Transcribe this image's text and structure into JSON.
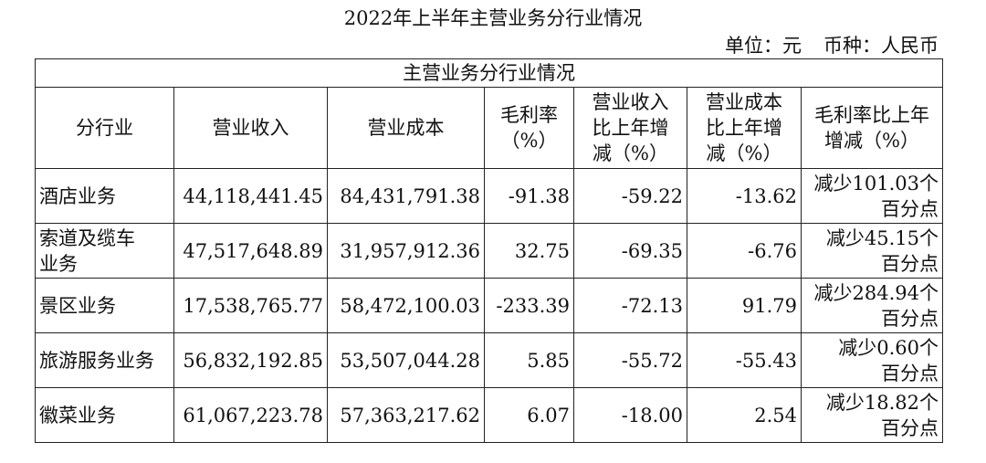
{
  "header": {
    "title": "2022年上半年主营业务分行业情况",
    "unit": "单位：元",
    "currency": "币种：人民币"
  },
  "table": {
    "caption": "主营业务分行业情况",
    "columns": [
      "分行业",
      "营业收入",
      "营业成本",
      "毛利率\n（%）",
      "营业收入\n比上年增\n减（%）",
      "营业成本\n比上年增\n减（%）",
      "毛利率比上年\n增减（%）"
    ],
    "rows": [
      [
        "酒店业务",
        "44,118,441.45",
        "84,431,791.38",
        "-91.38",
        "-59.22",
        "-13.62",
        "减少101.03个\n百分点"
      ],
      [
        "索道及缆车\n业务",
        "47,517,648.89",
        "31,957,912.36",
        "32.75",
        "-69.35",
        "-6.76",
        "减少45.15个\n百分点"
      ],
      [
        "景区业务",
        "17,538,765.77",
        "58,472,100.03",
        "-233.39",
        "-72.13",
        "91.79",
        "减少284.94个\n百分点"
      ],
      [
        "旅游服务业务",
        "56,832,192.85",
        "53,507,044.28",
        "5.85",
        "-55.72",
        "-55.43",
        "减少0.60个\n百分点"
      ],
      [
        "徽菜业务",
        "61,067,223.78",
        "57,363,217.62",
        "6.07",
        "-18.00",
        "2.54",
        "减少18.82个\n百分点"
      ]
    ]
  }
}
